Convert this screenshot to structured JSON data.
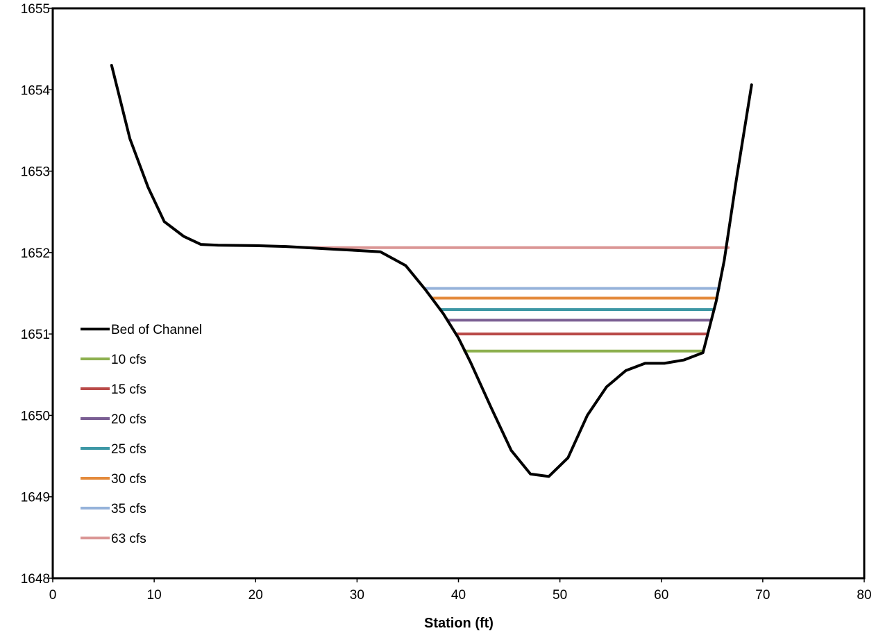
{
  "chart_data": {
    "type": "line",
    "title": "",
    "xlabel": "Station (ft)",
    "ylabel": "",
    "xlim": [
      0,
      80
    ],
    "ylim": [
      1648,
      1655
    ],
    "xticks": [
      0,
      10,
      20,
      30,
      40,
      50,
      60,
      70,
      80
    ],
    "yticks": [
      1648,
      1649,
      1650,
      1651,
      1652,
      1653,
      1654,
      1655
    ],
    "grid": false,
    "legend_position": "left",
    "series": [
      {
        "name": "Bed of Channel",
        "color": "#000000",
        "points": [
          [
            5.8,
            1654.3
          ],
          [
            7.6,
            1653.4
          ],
          [
            9.4,
            1652.8
          ],
          [
            11.0,
            1652.38
          ],
          [
            12.9,
            1652.2
          ],
          [
            14.6,
            1652.1
          ],
          [
            16.3,
            1652.09
          ],
          [
            20.0,
            1652.085
          ],
          [
            23.0,
            1652.075
          ],
          [
            25.0,
            1652.06
          ],
          [
            28.0,
            1652.04
          ],
          [
            32.3,
            1652.01
          ],
          [
            34.8,
            1651.84
          ],
          [
            36.7,
            1651.55
          ],
          [
            38.5,
            1651.25
          ],
          [
            40.0,
            1650.95
          ],
          [
            41.2,
            1650.65
          ],
          [
            43.2,
            1650.1
          ],
          [
            45.2,
            1649.57
          ],
          [
            47.1,
            1649.28
          ],
          [
            48.9,
            1649.25
          ],
          [
            50.8,
            1649.48
          ],
          [
            52.7,
            1650.0
          ],
          [
            54.6,
            1650.35
          ],
          [
            56.5,
            1650.55
          ],
          [
            58.4,
            1650.64
          ],
          [
            60.3,
            1650.64
          ],
          [
            62.2,
            1650.68
          ],
          [
            64.1,
            1650.77
          ],
          [
            65.4,
            1651.4
          ],
          [
            66.2,
            1651.9
          ],
          [
            67.4,
            1652.9
          ],
          [
            68.9,
            1654.06
          ]
        ]
      },
      {
        "name": "10 cfs",
        "color": "#8DB04F",
        "points": [
          [
            40.6,
            1650.79
          ],
          [
            64.0,
            1650.79
          ]
        ]
      },
      {
        "name": "15 cfs",
        "color": "#B94A48",
        "points": [
          [
            39.8,
            1651.0
          ],
          [
            64.5,
            1651.0
          ]
        ]
      },
      {
        "name": "20 cfs",
        "color": "#7A5E93",
        "points": [
          [
            39.0,
            1651.17
          ],
          [
            64.9,
            1651.17
          ]
        ]
      },
      {
        "name": "25 cfs",
        "color": "#3D97A5",
        "points": [
          [
            38.2,
            1651.3
          ],
          [
            65.2,
            1651.3
          ]
        ]
      },
      {
        "name": "30 cfs",
        "color": "#E48A3C",
        "points": [
          [
            37.4,
            1651.44
          ],
          [
            65.5,
            1651.44
          ]
        ]
      },
      {
        "name": "35 cfs",
        "color": "#95B2DA",
        "points": [
          [
            36.7,
            1651.56
          ],
          [
            65.7,
            1651.56
          ]
        ]
      },
      {
        "name": "63 cfs",
        "color": "#DA9594",
        "points": [
          [
            25.0,
            1652.06
          ],
          [
            66.6,
            1652.06
          ]
        ]
      }
    ]
  }
}
